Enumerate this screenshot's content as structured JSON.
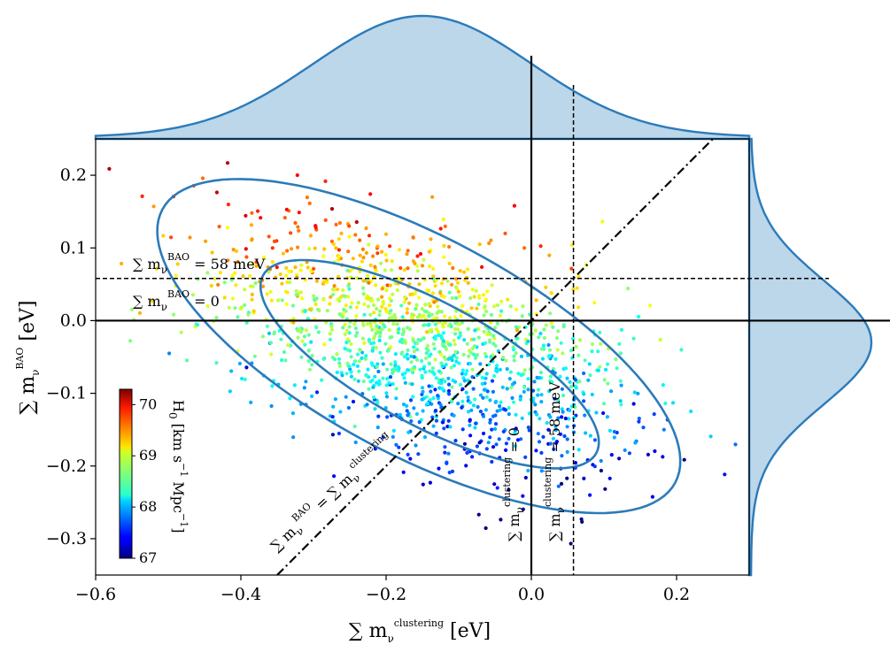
{
  "chart_data": {
    "type": "scatter",
    "title": "",
    "xlabel": {
      "main": "∑ m",
      "sub": "ν",
      "sup": "clustering",
      "unit": " [eV]"
    },
    "ylabel": {
      "main": "∑ m",
      "sub": "ν",
      "sup": "BAO",
      "unit": " [eV]"
    },
    "xlim": [
      -0.6,
      0.3
    ],
    "ylim": [
      -0.35,
      0.25
    ],
    "x_ticks": [
      -0.6,
      -0.4,
      -0.2,
      0.0,
      0.2
    ],
    "x_tick_labels": [
      "−0.6",
      "−0.4",
      "−0.2",
      "0.0",
      "0.2"
    ],
    "y_ticks": [
      -0.3,
      -0.2,
      -0.1,
      0.0,
      0.1,
      0.2
    ],
    "y_tick_labels": [
      "−0.3",
      "−0.2",
      "−0.1",
      "0.0",
      "0.1",
      "0.2"
    ],
    "grid": false,
    "samples": {
      "n_points": 1500,
      "mean": [
        -0.15,
        -0.03
      ],
      "std": [
        0.15,
        0.085
      ],
      "correlation": -0.55,
      "color_variable": "H0",
      "colormap": "jet",
      "color_range": [
        67.0,
        70.3
      ]
    },
    "contours": [
      {
        "level": "68%",
        "center": [
          -0.14,
          -0.06
        ],
        "semi_axes": [
          0.26,
          0.085
        ],
        "angle_deg_data": -28
      },
      {
        "level": "95%",
        "center": [
          -0.155,
          -0.035
        ],
        "semi_axes": [
          0.4,
          0.15
        ],
        "angle_deg_data": -28
      }
    ],
    "lines": [
      {
        "kind": "solid",
        "orientation": "vertical",
        "x": 0.0
      },
      {
        "kind": "solid",
        "orientation": "horizontal",
        "y": 0.0
      },
      {
        "kind": "dashed",
        "orientation": "vertical",
        "x": 0.058
      },
      {
        "kind": "dashed",
        "orientation": "horizontal",
        "y": 0.058
      },
      {
        "kind": "dashdot",
        "orientation": "diagonal",
        "slope": 1,
        "from_x": -0.35,
        "to_x": 0.25
      }
    ],
    "marginal_x": {
      "mean": -0.15,
      "std": 0.15
    },
    "marginal_y": {
      "mean": -0.03,
      "std": 0.085
    },
    "annotations": {
      "h58": {
        "main": "∑ m",
        "sub": "ν",
        "sup": "BAO",
        "rest": " = 58 meV"
      },
      "h0": {
        "main": "∑ m",
        "sub": "ν",
        "sup": "BAO",
        "rest": " = 0"
      },
      "v0": {
        "main": "∑ m",
        "sub": "ν",
        "sup": "clustering",
        "rest": " = 0"
      },
      "v58": {
        "main": "∑ m",
        "sub": "ν",
        "sup": "clustering",
        "rest": " = 58 meV"
      },
      "diag": {
        "main1": "∑ m",
        "sub1": "ν",
        "sup1": "BAO",
        "eq": " = ∑ m",
        "sub2": "ν",
        "sup2": "clustering"
      }
    },
    "colorbar": {
      "label": {
        "main": "H",
        "sub": "0",
        "unit": " [km s",
        "sup1": "−1",
        "mid": " Mpc",
        "sup2": "−1",
        "end": "]"
      },
      "ticks": [
        67,
        68,
        69,
        70
      ],
      "tick_labels": [
        "67",
        "68",
        "69",
        "70"
      ],
      "range": [
        67.0,
        70.3
      ]
    },
    "colors": {
      "contour": "#2b7bba",
      "marginal_fill": "#bcd6ea",
      "marginal_line": "#2b7bba"
    }
  }
}
